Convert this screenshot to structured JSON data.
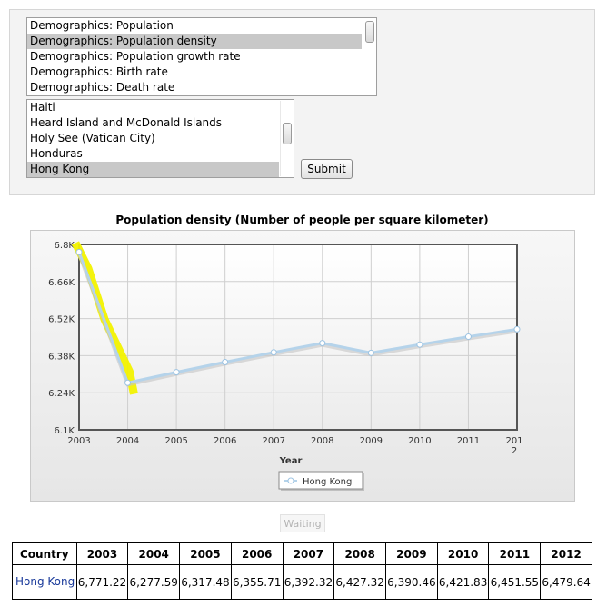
{
  "indicator_list": {
    "items": [
      "Demographics: Population",
      "Demographics: Population density",
      "Demographics: Population growth rate",
      "Demographics: Birth rate",
      "Demographics: Death rate"
    ],
    "selected_index": 1
  },
  "country_list": {
    "items": [
      "Haiti",
      "Heard Island and McDonald Islands",
      "Holy See (Vatican City)",
      "Honduras",
      "Hong Kong"
    ],
    "selected_index": 4
  },
  "submit_label": "Submit",
  "waiting_label": "Waiting",
  "chart_data": {
    "type": "line",
    "title": "Population density (Number of people per square kilometer)",
    "xlabel": "Year",
    "ylabel": "",
    "x": [
      2003,
      2004,
      2005,
      2006,
      2007,
      2008,
      2009,
      2010,
      2011,
      2012
    ],
    "x_tick_labels": [
      "2003",
      "2004",
      "2005",
      "2006",
      "2007",
      "2008",
      "2009",
      "2010",
      "2011",
      "2012"
    ],
    "y_tick_labels": [
      "6.1K",
      "6.24K",
      "6.38K",
      "6.52K",
      "6.66K",
      "6.8K"
    ],
    "ylim": [
      6100,
      6800
    ],
    "series": [
      {
        "name": "Hong Kong",
        "values": [
          6771.22,
          6277.59,
          6317.48,
          6355.71,
          6392.32,
          6427.32,
          6390.46,
          6421.83,
          6451.55,
          6479.64
        ]
      }
    ],
    "grid": true,
    "legend_position": "bottom-center",
    "line_color": "#b5d3ea",
    "highlight_color": "#f2f200"
  },
  "table": {
    "header_label": "Country",
    "years": [
      "2003",
      "2004",
      "2005",
      "2006",
      "2007",
      "2008",
      "2009",
      "2010",
      "2011",
      "2012"
    ],
    "rows": [
      {
        "country": "Hong Kong",
        "values": [
          "6,771.22",
          "6,277.59",
          "6,317.48",
          "6,355.71",
          "6,392.32",
          "6,427.32",
          "6,390.46",
          "6,421.83",
          "6,451.55",
          "6,479.64"
        ]
      }
    ]
  }
}
